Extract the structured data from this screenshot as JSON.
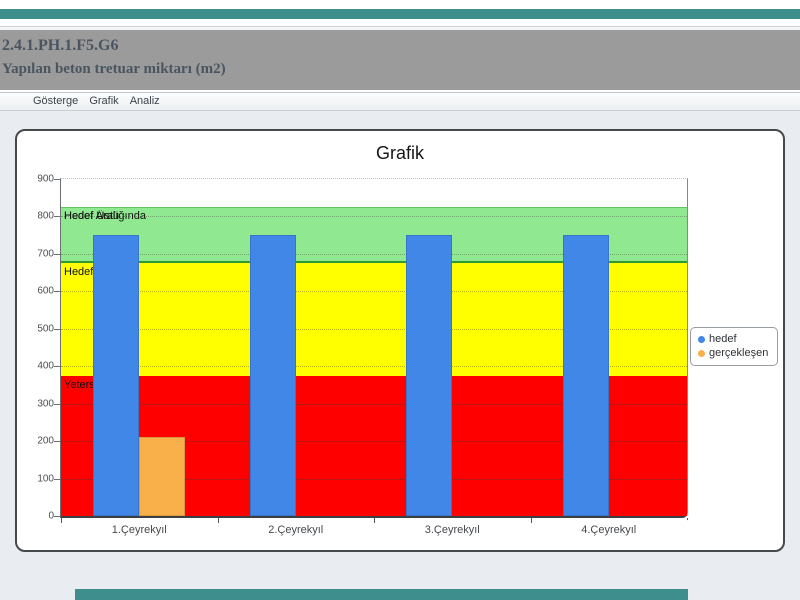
{
  "accent": {
    "teal_bar_color": "#3f8e8e"
  },
  "header": {
    "code": "2.4.1.PH.1.F5.G6",
    "title": "Yapılan beton tretuar miktarı (m2)",
    "bg_color": "#9b9b9b"
  },
  "tabs": {
    "items": [
      "Gösterge",
      "Grafik",
      "Analiz"
    ]
  },
  "chart_data": {
    "type": "bar",
    "title": "Grafik",
    "categories": [
      "1.Çeyrekyıl",
      "2.Çeyrekyıl",
      "3.Çeyrekyıl",
      "4.Çeyrekyıl"
    ],
    "series": [
      {
        "name": "hedef",
        "color": "#4187e7",
        "values": [
          750,
          750,
          750,
          750
        ]
      },
      {
        "name": "gerçekleşen",
        "color": "#f9b04a",
        "values": [
          210,
          null,
          null,
          null
        ]
      }
    ],
    "ylim": [
      0,
      900
    ],
    "ytick_step": 100,
    "yticks": [
      0,
      100,
      200,
      300,
      400,
      500,
      600,
      700,
      800,
      900
    ],
    "plot_bands": [
      {
        "from": 0,
        "to": 375,
        "color": "#ff0000",
        "label": "Yetersiz",
        "label_clipped": true
      },
      {
        "from": 375,
        "to": 675,
        "color": "#ffff00",
        "label": "Hedef Aralığında",
        "label_clipped": true
      },
      {
        "from": 675,
        "to": 825,
        "color": "#90e890",
        "label": "Hedef Üstü",
        "ghost_label": "Hedef Aralığında"
      }
    ],
    "grid": true,
    "legend": {
      "position": "right",
      "entries": [
        "hedef",
        "gerçekleşen"
      ]
    }
  },
  "annotations": {
    "whiteout_remnant": "···"
  }
}
